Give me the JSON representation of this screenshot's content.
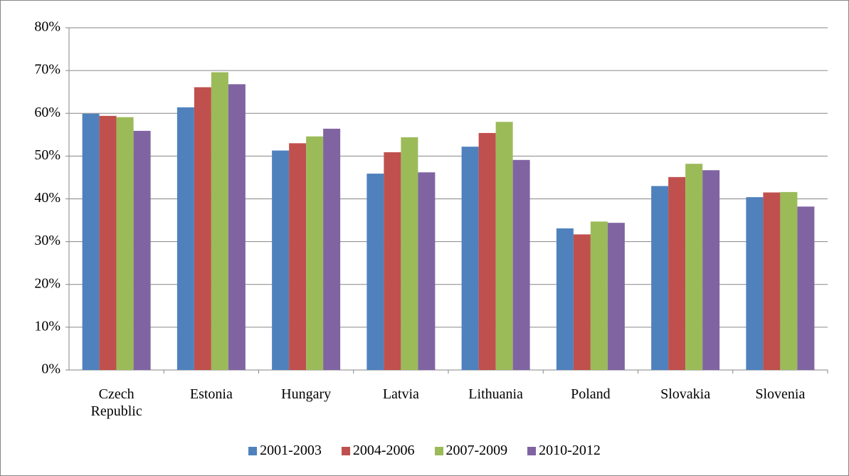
{
  "chart_data": {
    "type": "bar",
    "categories": [
      "Czech Republic",
      "Estonia",
      "Hungary",
      "Latvia",
      "Lithuania",
      "Poland",
      "Slovakia",
      "Slovenia"
    ],
    "series": [
      {
        "name": "2001-2003",
        "color": "#4f81bd",
        "values": [
          59.9,
          61.4,
          51.3,
          45.9,
          52.2,
          33.1,
          43.0,
          40.4
        ]
      },
      {
        "name": "2004-2006",
        "color": "#c0504d",
        "values": [
          59.4,
          66.1,
          53.0,
          50.9,
          55.4,
          31.7,
          45.1,
          41.5
        ]
      },
      {
        "name": "2007-2009",
        "color": "#9bbb59",
        "values": [
          59.1,
          69.6,
          54.6,
          54.4,
          58.0,
          34.7,
          48.2,
          41.6
        ]
      },
      {
        "name": "2010-2012",
        "color": "#8064a2",
        "values": [
          55.9,
          66.8,
          56.4,
          46.2,
          49.1,
          34.4,
          46.7,
          38.2
        ]
      }
    ],
    "ylim": [
      0,
      80
    ],
    "yticks": [
      {
        "value": 0,
        "label": "0%"
      },
      {
        "value": 10,
        "label": "10%"
      },
      {
        "value": 20,
        "label": "20%"
      },
      {
        "value": 30,
        "label": "30%"
      },
      {
        "value": 40,
        "label": "40%"
      },
      {
        "value": 50,
        "label": "50%"
      },
      {
        "value": 60,
        "label": "60%"
      },
      {
        "value": 70,
        "label": "70%"
      },
      {
        "value": 80,
        "label": "80%"
      }
    ],
    "grid": true,
    "legend": "bottom"
  }
}
